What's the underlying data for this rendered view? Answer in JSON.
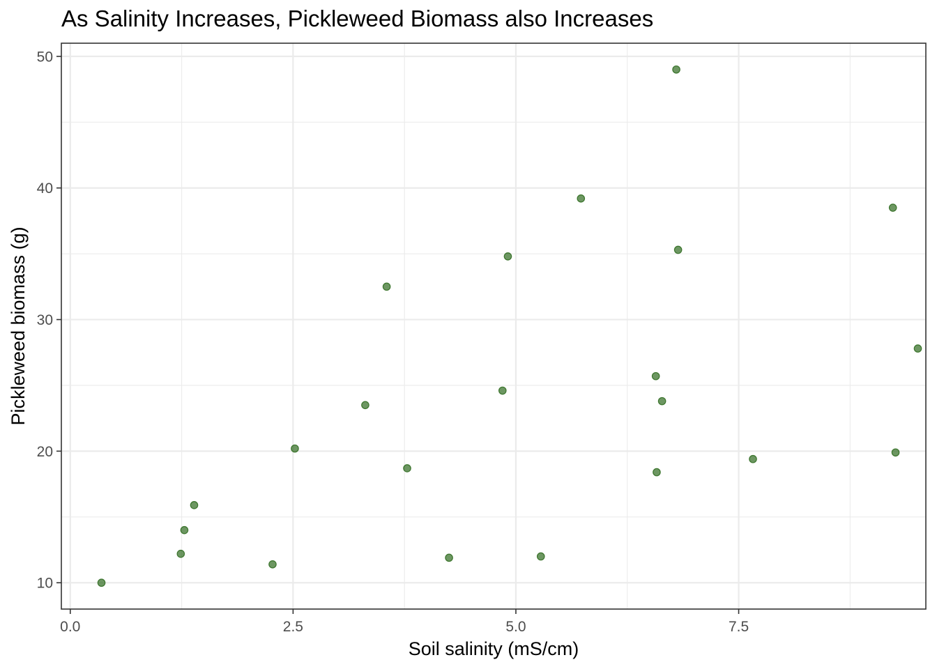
{
  "chart_data": {
    "type": "scatter",
    "title": "As Salinity Increases, Pickleweed Biomass also Increases",
    "xlabel": "Soil salinity (mS/cm)",
    "ylabel": "Pickleweed biomass (g)",
    "xlim": [
      -0.1,
      9.6
    ],
    "ylim": [
      8.0,
      51.0
    ],
    "x_major_ticks": [
      0.0,
      2.5,
      5.0,
      7.5
    ],
    "x_tick_labels": [
      "0.0",
      "2.5",
      "5.0",
      "7.5"
    ],
    "x_minor_ticks": [
      1.25,
      3.75,
      6.25,
      8.75
    ],
    "y_major_ticks": [
      10,
      20,
      30,
      40,
      50
    ],
    "y_tick_labels": [
      "10",
      "20",
      "30",
      "40",
      "50"
    ],
    "y_minor_ticks": [
      15,
      25,
      35,
      45
    ],
    "grid": true,
    "point_color": "#2f6b1f",
    "point_fill_opacity": 0.7,
    "x": [
      0.35,
      1.24,
      1.28,
      1.39,
      2.27,
      2.52,
      3.31,
      3.55,
      3.78,
      4.25,
      4.85,
      4.91,
      5.28,
      5.73,
      6.57,
      6.58,
      6.64,
      6.8,
      6.82,
      7.66,
      9.23,
      9.26,
      9.51
    ],
    "y": [
      10.0,
      12.2,
      14.0,
      15.9,
      11.4,
      20.2,
      23.5,
      32.5,
      18.7,
      11.9,
      24.6,
      34.8,
      12.0,
      39.2,
      25.7,
      18.4,
      23.8,
      49.0,
      35.3,
      19.4,
      38.5,
      19.9,
      27.8
    ]
  }
}
